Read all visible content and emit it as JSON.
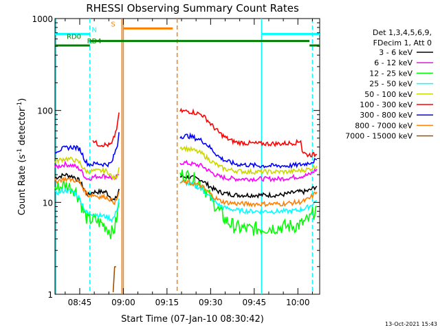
{
  "chart_data": {
    "type": "line",
    "title": "RHESSI Observing Summary Count Rates",
    "xlabel": "Start Time (07-Jan-10 08:30:42)",
    "ylabel_main": "Count Rate (s",
    "ylabel_sup1": "-1",
    "ylabel_mid": " detector",
    "ylabel_sup2": "-1",
    "ylabel_end": ")",
    "y_scale": "log",
    "ylim": [
      1,
      1000
    ],
    "xlim_minutes": [
      36.5,
      127.5
    ],
    "x_ticks": [
      {
        "m": 45,
        "label": "08:45"
      },
      {
        "m": 60,
        "label": "09:00"
      },
      {
        "m": 75,
        "label": "09:15"
      },
      {
        "m": 90,
        "label": "09:30"
      },
      {
        "m": 105,
        "label": "09:45"
      },
      {
        "m": 120,
        "label": "10:00"
      }
    ],
    "y_ticks": [
      {
        "v": 1,
        "label": "1"
      },
      {
        "v": 10,
        "label": "10"
      },
      {
        "v": 100,
        "label": "100"
      },
      {
        "v": 1000,
        "label": "1000"
      }
    ],
    "legend_header": [
      "Det 1,3,4,5,6,9,",
      "FDecim 1, Att 0"
    ],
    "legend_position": "right",
    "series": [
      {
        "name": "3 - 6 keV",
        "color": "#000000",
        "points": [
          [
            36.5,
            18.5
          ],
          [
            40,
            20
          ],
          [
            43,
            19
          ],
          [
            45,
            17
          ],
          [
            46,
            15
          ],
          [
            47,
            13
          ],
          [
            48,
            12
          ],
          [
            49.5,
            13
          ],
          [
            52,
            13
          ],
          [
            54,
            13
          ],
          [
            55,
            12
          ],
          [
            56,
            11
          ],
          [
            57,
            10.5
          ],
          [
            58,
            12
          ],
          [
            58.5,
            14
          ],
          [
            79.5,
            19
          ],
          [
            81,
            19
          ],
          [
            84,
            18.5
          ],
          [
            87,
            17.5
          ],
          [
            89,
            15.5
          ],
          [
            91,
            14
          ],
          [
            93,
            13
          ],
          [
            95,
            12.5
          ],
          [
            99,
            12
          ],
          [
            103,
            12
          ],
          [
            107,
            12
          ],
          [
            111,
            12
          ],
          [
            114,
            12
          ],
          [
            117,
            12.5
          ],
          [
            120,
            13
          ],
          [
            122,
            13
          ],
          [
            124,
            13.5
          ],
          [
            126.5,
            15
          ]
        ]
      },
      {
        "name": "6 - 12 keV",
        "color": "#ff00ff",
        "points": [
          [
            36.5,
            24
          ],
          [
            40,
            26
          ],
          [
            43,
            25
          ],
          [
            45,
            23
          ],
          [
            46,
            21
          ],
          [
            47,
            18.5
          ],
          [
            48,
            18
          ],
          [
            50,
            19
          ],
          [
            53,
            19.5
          ],
          [
            55,
            19
          ],
          [
            57,
            18
          ],
          [
            58.5,
            20
          ],
          [
            79.5,
            27
          ],
          [
            81,
            27
          ],
          [
            84,
            26
          ],
          [
            87,
            25
          ],
          [
            89,
            22.5
          ],
          [
            91,
            20.5
          ],
          [
            93,
            19
          ],
          [
            95,
            18.5
          ],
          [
            99,
            18
          ],
          [
            103,
            18
          ],
          [
            107,
            18
          ],
          [
            111,
            18
          ],
          [
            114,
            18
          ],
          [
            117,
            18.5
          ],
          [
            120,
            19
          ],
          [
            122,
            19.5
          ],
          [
            124,
            20
          ],
          [
            126.5,
            23
          ]
        ]
      },
      {
        "name": "12 - 25 keV",
        "color": "#00ff00",
        "points": [
          [
            36.5,
            14
          ],
          [
            40,
            15.5
          ],
          [
            43,
            14
          ],
          [
            45,
            11
          ],
          [
            46,
            8.5
          ],
          [
            47,
            7
          ],
          [
            48,
            6.5
          ],
          [
            50,
            6.5
          ],
          [
            52,
            6
          ],
          [
            54,
            5.5
          ],
          [
            55,
            5
          ],
          [
            56,
            4.7
          ],
          [
            57,
            5.2
          ],
          [
            58,
            7.5
          ],
          [
            58.5,
            10
          ],
          [
            79.5,
            20
          ],
          [
            81,
            20
          ],
          [
            84,
            18
          ],
          [
            87,
            15.5
          ],
          [
            89,
            12.5
          ],
          [
            91,
            10
          ],
          [
            93,
            8
          ],
          [
            95,
            6.5
          ],
          [
            97,
            5.8
          ],
          [
            99,
            5.3
          ],
          [
            103,
            5.1
          ],
          [
            107,
            5.2
          ],
          [
            111,
            5.3
          ],
          [
            114,
            5.4
          ],
          [
            117,
            5.5
          ],
          [
            120,
            5.6
          ],
          [
            122,
            6
          ],
          [
            124,
            6.5
          ],
          [
            126.5,
            9
          ]
        ]
      },
      {
        "name": "25 - 50 keV",
        "color": "#00ffff",
        "points": [
          [
            36.5,
            12.5
          ],
          [
            40,
            13.5
          ],
          [
            43,
            13
          ],
          [
            45,
            11
          ],
          [
            46,
            9.5
          ],
          [
            47,
            8
          ],
          [
            48,
            7.5
          ],
          [
            50,
            7.5
          ],
          [
            52,
            7.2
          ],
          [
            54,
            7
          ],
          [
            55,
            6.8
          ],
          [
            56,
            6.5
          ],
          [
            57,
            7
          ],
          [
            58,
            9
          ],
          [
            58.5,
            11
          ],
          [
            79.5,
            16.5
          ],
          [
            81,
            16.5
          ],
          [
            84,
            15.5
          ],
          [
            87,
            14
          ],
          [
            89,
            12
          ],
          [
            91,
            10.5
          ],
          [
            93,
            9.3
          ],
          [
            95,
            8.7
          ],
          [
            99,
            8.2
          ],
          [
            103,
            8
          ],
          [
            107,
            8
          ],
          [
            111,
            8
          ],
          [
            114,
            8
          ],
          [
            117,
            8
          ],
          [
            120,
            8.2
          ],
          [
            122,
            8.5
          ],
          [
            124,
            9
          ],
          [
            126.5,
            10.5
          ]
        ]
      },
      {
        "name": "50 - 100 keV",
        "color": "#ccd600",
        "points": [
          [
            36.5,
            28
          ],
          [
            40,
            30
          ],
          [
            43,
            29
          ],
          [
            45,
            27
          ],
          [
            46,
            24
          ],
          [
            47,
            22
          ],
          [
            48,
            21.5
          ],
          [
            49.5,
            22
          ],
          [
            52,
            22
          ],
          [
            54,
            22
          ],
          [
            55,
            21
          ],
          [
            56,
            19
          ],
          [
            57,
            18
          ],
          [
            58,
            20
          ],
          [
            58.5,
            24
          ],
          [
            79.5,
            40
          ],
          [
            81,
            39
          ],
          [
            84,
            37
          ],
          [
            87,
            34
          ],
          [
            89,
            30
          ],
          [
            91,
            27
          ],
          [
            93,
            24.5
          ],
          [
            95,
            23
          ],
          [
            99,
            22
          ],
          [
            103,
            21.5
          ],
          [
            107,
            21.5
          ],
          [
            111,
            21.5
          ],
          [
            114,
            21.5
          ],
          [
            117,
            21.5
          ],
          [
            120,
            22
          ],
          [
            122,
            22.5
          ],
          [
            124,
            23
          ],
          [
            126.5,
            25
          ]
        ]
      },
      {
        "name": "100 - 300 keV",
        "color": "#ff0000",
        "points": [
          [
            49.5,
            48
          ],
          [
            51,
            43
          ],
          [
            53,
            42.5
          ],
          [
            55,
            42
          ],
          [
            56,
            43
          ],
          [
            57,
            53
          ],
          [
            58,
            70
          ],
          [
            58.5,
            95
          ],
          [
            79.5,
            98
          ],
          [
            82,
            98
          ],
          [
            84,
            96
          ],
          [
            87,
            90
          ],
          [
            89,
            78
          ],
          [
            91,
            66
          ],
          [
            93,
            57
          ],
          [
            95,
            51
          ],
          [
            97,
            47
          ],
          [
            99,
            45
          ],
          [
            103,
            44
          ],
          [
            107,
            43.5
          ],
          [
            111,
            43.5
          ],
          [
            114,
            43.5
          ],
          [
            117,
            44
          ],
          [
            120,
            45
          ],
          [
            121,
            48
          ],
          [
            121.5,
            36
          ],
          [
            123,
            33
          ],
          [
            126.5,
            33
          ]
        ]
      },
      {
        "name": "300 - 800 keV",
        "color": "#0000ff",
        "points": [
          [
            36.5,
            36
          ],
          [
            40,
            39
          ],
          [
            43,
            40
          ],
          [
            45,
            38
          ],
          [
            46,
            33
          ],
          [
            47,
            28
          ],
          [
            48,
            26
          ],
          [
            49.5,
            26
          ],
          [
            51,
            26.5
          ],
          [
            53,
            26
          ],
          [
            55,
            26
          ],
          [
            56,
            27
          ],
          [
            57,
            34
          ],
          [
            58,
            42
          ],
          [
            58.5,
            58
          ],
          [
            79.5,
            52
          ],
          [
            82,
            53
          ],
          [
            84,
            51
          ],
          [
            87,
            47
          ],
          [
            89,
            42
          ],
          [
            91,
            36
          ],
          [
            93,
            31
          ],
          [
            95,
            28.5
          ],
          [
            97,
            27
          ],
          [
            99,
            26
          ],
          [
            103,
            25.5
          ],
          [
            107,
            25
          ],
          [
            111,
            25
          ],
          [
            114,
            25
          ],
          [
            117,
            25
          ],
          [
            120,
            25.5
          ],
          [
            122,
            26
          ],
          [
            124,
            27
          ],
          [
            126.5,
            29
          ]
        ]
      },
      {
        "name": "800 - 7000 keV",
        "color": "#ff8000",
        "points": [
          [
            36.5,
            17
          ],
          [
            40,
            18
          ],
          [
            43,
            17.5
          ],
          [
            45,
            16.5
          ],
          [
            46,
            14.5
          ],
          [
            47,
            13
          ],
          [
            48,
            12
          ],
          [
            50,
            12
          ],
          [
            52,
            11.5
          ],
          [
            54,
            11.5
          ],
          [
            55,
            11
          ],
          [
            56,
            10.5
          ],
          [
            57,
            10
          ],
          [
            58,
            11
          ],
          [
            58.5,
            13
          ],
          [
            79.5,
            16.5
          ],
          [
            81,
            16.5
          ],
          [
            84,
            16
          ],
          [
            87,
            15
          ],
          [
            89,
            13
          ],
          [
            91,
            11.5
          ],
          [
            93,
            10.5
          ],
          [
            95,
            10
          ],
          [
            99,
            9.7
          ],
          [
            103,
            9.6
          ],
          [
            107,
            9.6
          ],
          [
            111,
            9.6
          ],
          [
            114,
            9.6
          ],
          [
            117,
            9.8
          ],
          [
            120,
            10
          ],
          [
            122,
            10.3
          ],
          [
            124,
            11
          ],
          [
            126.5,
            13
          ]
        ]
      },
      {
        "name": "7000 - 15000 keV",
        "color": "#a05000",
        "points": [
          [
            56.5,
            1.1
          ],
          [
            57,
            1.9
          ],
          [
            57.5,
            2.0
          ]
        ]
      }
    ],
    "vertical_lines": [
      {
        "m": 36.8,
        "color": "#00ffff",
        "style": "solid"
      },
      {
        "m": 48.5,
        "color": "#00ffff",
        "style": "dashed"
      },
      {
        "m": 59.5,
        "color": "#ff8000",
        "style": "solid"
      },
      {
        "m": 60.0,
        "color": "#ff8000",
        "style": "solid"
      },
      {
        "m": 78.5,
        "color": "#ff8000",
        "style": "dashed"
      },
      {
        "m": 107.5,
        "color": "#00ffff",
        "style": "solid"
      },
      {
        "m": 125.0,
        "color": "#00ffff",
        "style": "dashed"
      }
    ],
    "flag_bars": [
      {
        "label": "N",
        "color": "#00ffff",
        "y": 680,
        "segments": [
          [
            36.5,
            48.5
          ],
          [
            107.5,
            127.5
          ]
        ],
        "label_at": 50
      },
      {
        "label": "S",
        "color": "#ff8000",
        "y": 780,
        "segments": [
          [
            60,
            77
          ]
        ],
        "label_at": 56.5
      },
      {
        "label": "RD0",
        "color": "#008000",
        "y": 570,
        "segments": [
          [
            48.5,
            124
          ]
        ],
        "label_at": 43
      },
      {
        "label": "RD4",
        "color": "#008000",
        "y": 510,
        "segments": [
          [
            36.5,
            48.5
          ],
          [
            124,
            127.5
          ]
        ],
        "label_at": 50
      }
    ],
    "timestamp": "13-Oct-2021 15:43"
  }
}
